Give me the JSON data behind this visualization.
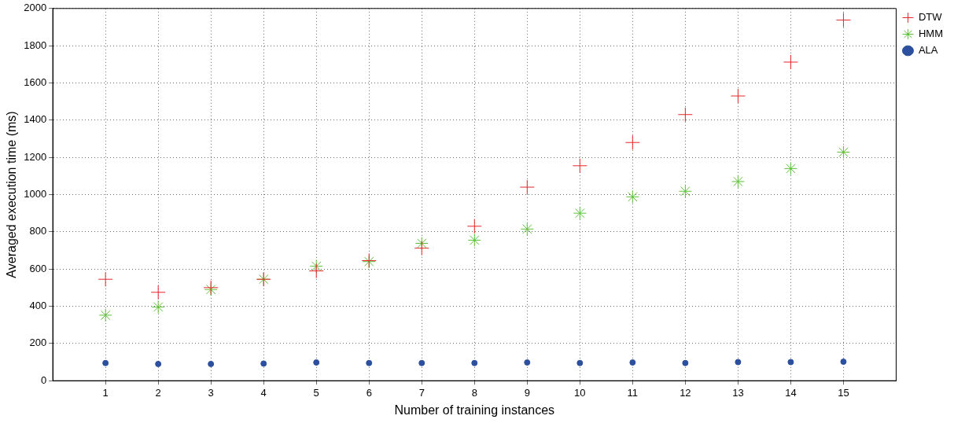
{
  "chart_data": {
    "type": "scatter",
    "xlabel": "Number of training instances",
    "ylabel": "Averaged execution time (ms)",
    "x": [
      1,
      2,
      3,
      4,
      5,
      6,
      7,
      8,
      9,
      10,
      11,
      12,
      13,
      14,
      15
    ],
    "xlim": [
      0,
      16
    ],
    "xticks": [
      1,
      2,
      3,
      4,
      5,
      6,
      7,
      8,
      9,
      10,
      11,
      12,
      13,
      14,
      15
    ],
    "ylim": [
      0,
      2000
    ],
    "yticks": [
      0,
      200,
      400,
      600,
      800,
      1000,
      1200,
      1400,
      1600,
      1800,
      2000
    ],
    "grid": true,
    "legend": "top right",
    "series": [
      {
        "name": "ALA",
        "color": "#2c4f9e",
        "marker": "circle",
        "values": [
          95,
          90,
          90,
          92,
          98,
          95,
          95,
          95,
          98,
          95,
          98,
          95,
          100,
          100,
          102
        ]
      },
      {
        "name": "HMM",
        "color": "#5ec13a",
        "values": [
          352,
          396,
          490,
          545,
          615,
          640,
          738,
          755,
          815,
          900,
          988,
          1018,
          1070,
          1140,
          1228
        ]
      },
      {
        "name": "DTW",
        "color": "#e8262b",
        "marker": "cross",
        "values": [
          545,
          475,
          500,
          545,
          590,
          645,
          712,
          830,
          1040,
          1155,
          1280,
          1430,
          1530,
          1712,
          1938
        ]
      }
    ]
  }
}
